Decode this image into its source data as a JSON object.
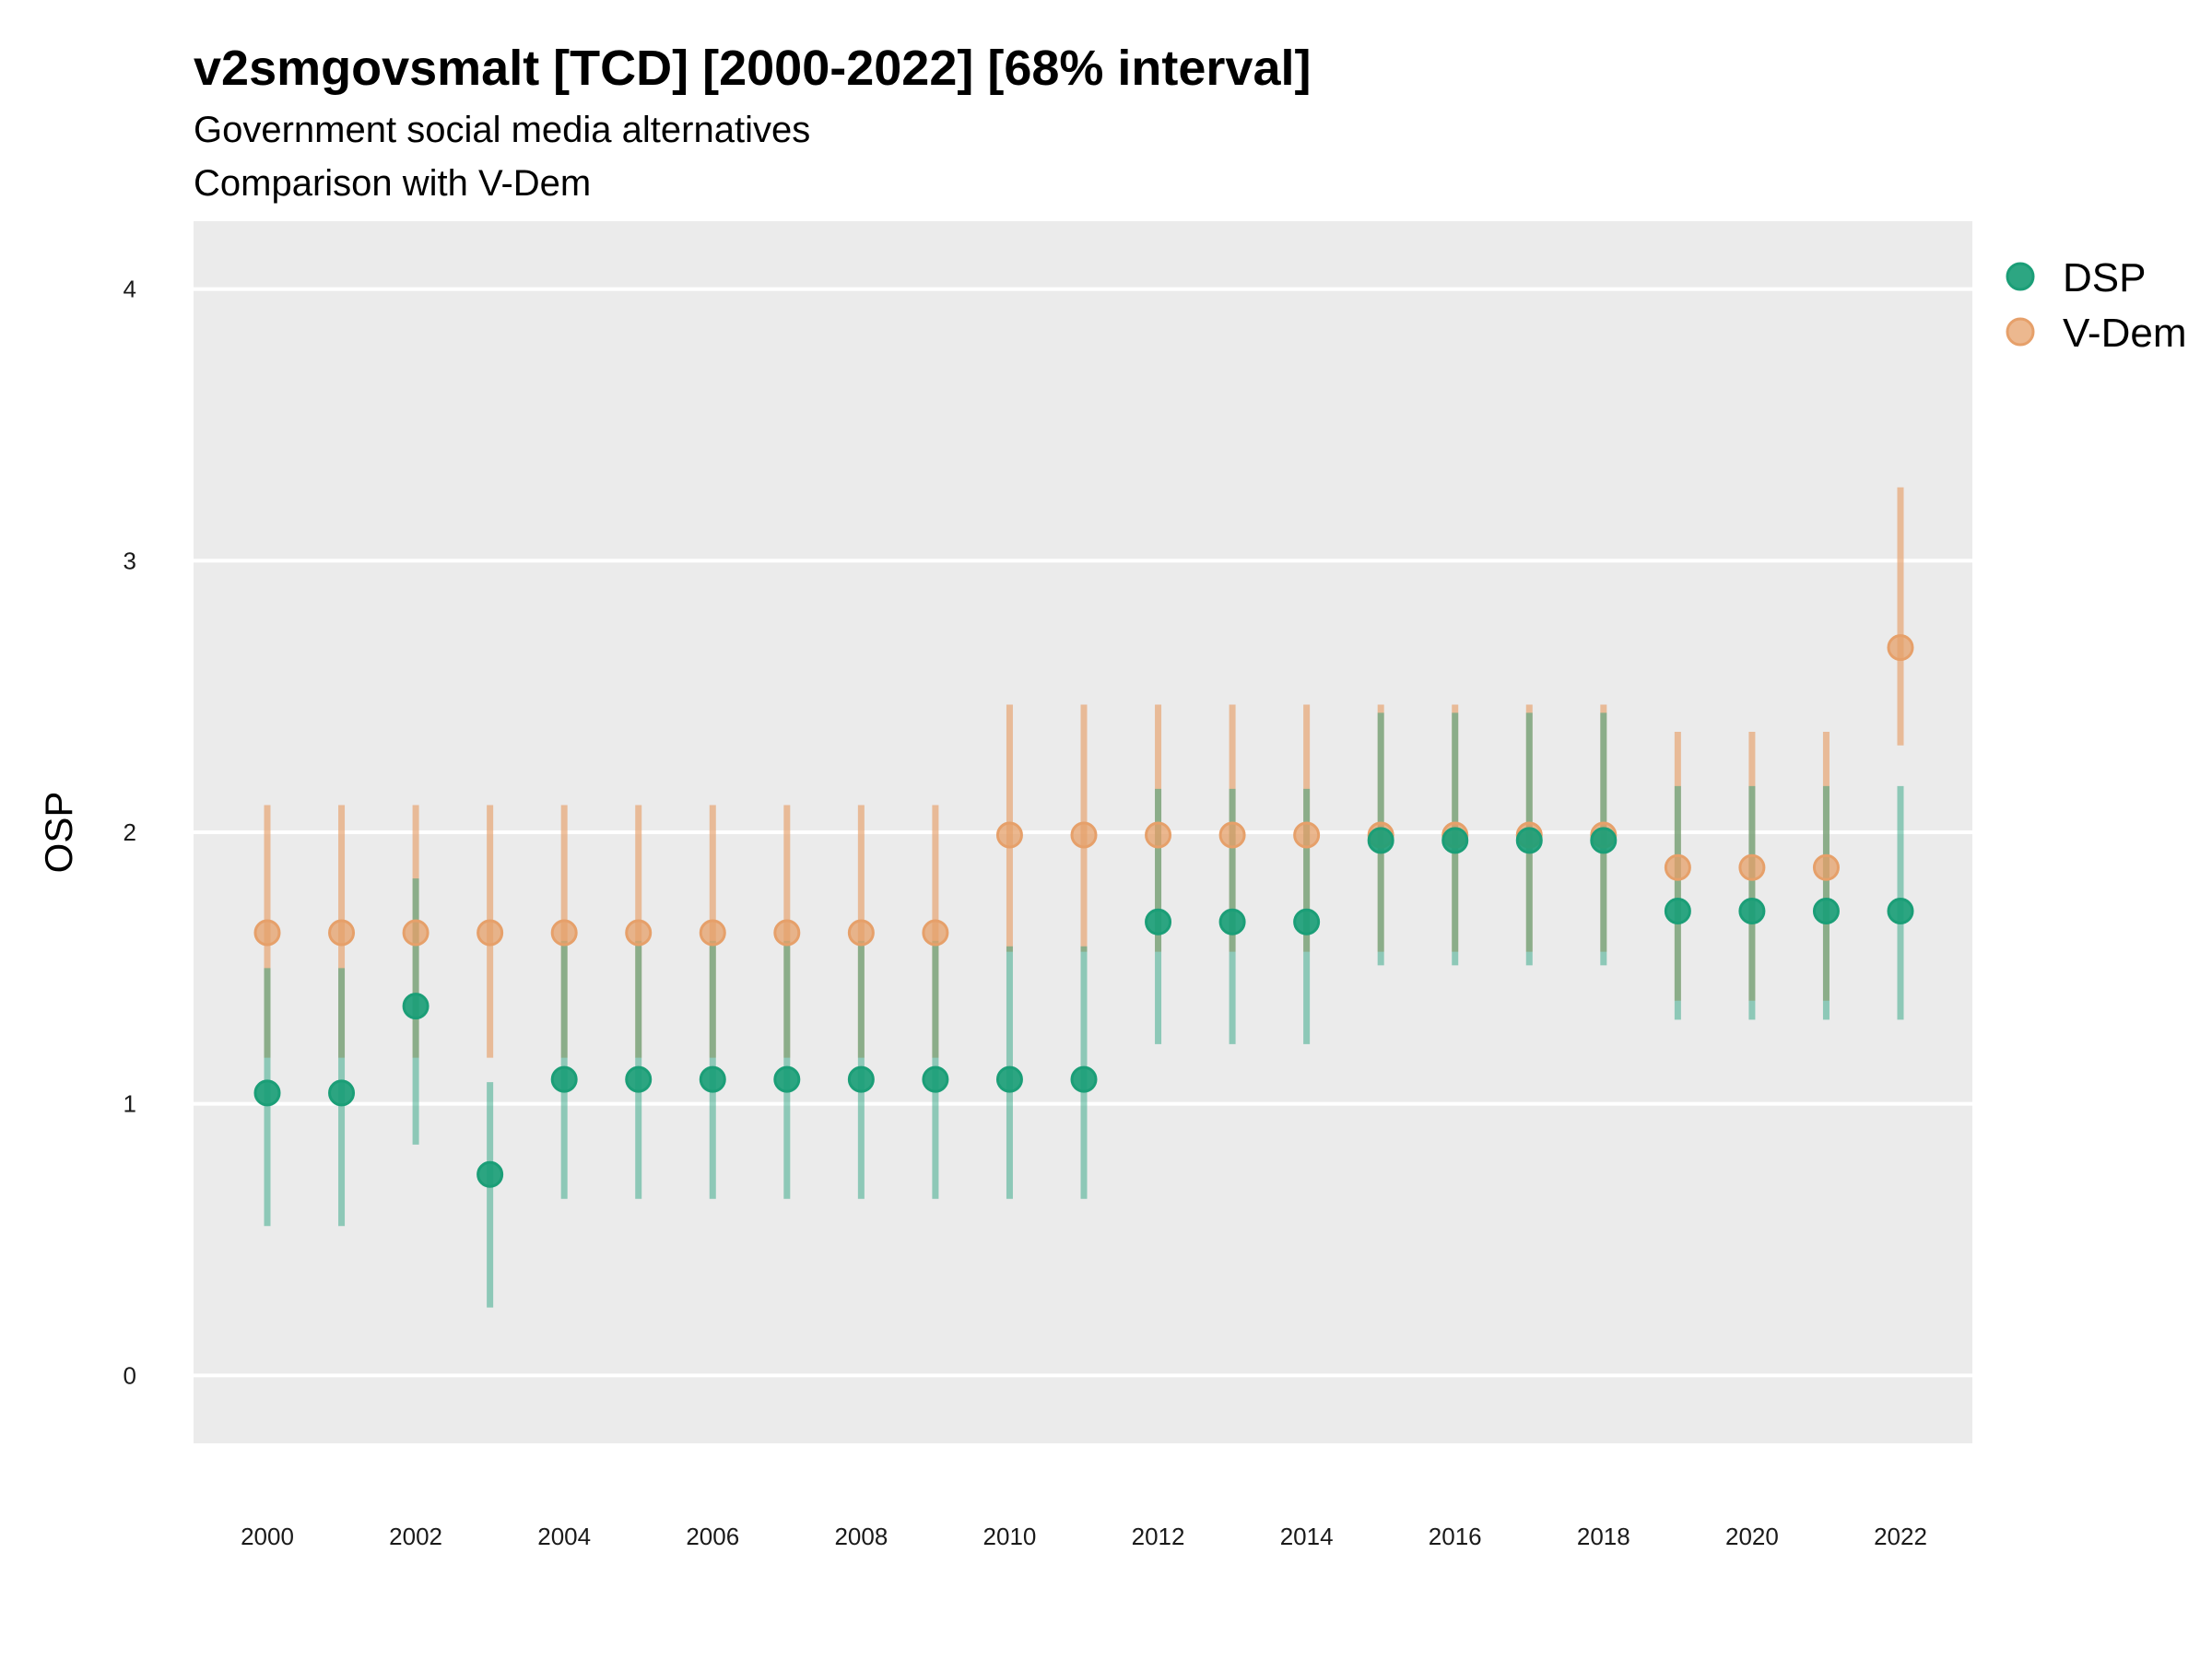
{
  "chart_data": {
    "type": "scatter",
    "title": "v2smgovsmalt [TCD] [2000-2022] [68% interval]",
    "subtitle": "Government social media alternatives",
    "caption": "Comparison with V-Dem",
    "xlabel": "",
    "ylabel": "OSP",
    "ylim": [
      -0.25,
      4.25
    ],
    "y_ticks": [
      "0",
      "1",
      "2",
      "3",
      "4"
    ],
    "x_ticks": [
      "2000",
      "2002",
      "2004",
      "2006",
      "2008",
      "2010",
      "2012",
      "2014",
      "2016",
      "2018",
      "2020",
      "2022"
    ],
    "x": [
      2000,
      2001,
      2002,
      2003,
      2004,
      2005,
      2006,
      2007,
      2008,
      2009,
      2010,
      2011,
      2012,
      2013,
      2014,
      2015,
      2016,
      2017,
      2018,
      2019,
      2020,
      2021,
      2022
    ],
    "grid": true,
    "legend_position": "right",
    "series": [
      {
        "name": "DSP",
        "color": "#1b9e77",
        "values": [
          1.04,
          1.04,
          1.36,
          0.74,
          1.09,
          1.09,
          1.09,
          1.09,
          1.09,
          1.09,
          1.09,
          1.09,
          1.67,
          1.67,
          1.67,
          1.97,
          1.97,
          1.97,
          1.97,
          1.71,
          1.71,
          1.71,
          1.71
        ],
        "lower": [
          0.55,
          0.55,
          0.85,
          0.25,
          0.65,
          0.65,
          0.65,
          0.65,
          0.65,
          0.65,
          0.65,
          0.65,
          1.22,
          1.22,
          1.22,
          1.51,
          1.51,
          1.51,
          1.51,
          1.31,
          1.31,
          1.31,
          1.31
        ],
        "upper": [
          1.5,
          1.5,
          1.83,
          1.08,
          1.6,
          1.6,
          1.6,
          1.6,
          1.6,
          1.6,
          1.58,
          1.58,
          2.16,
          2.16,
          2.16,
          2.44,
          2.44,
          2.44,
          2.44,
          2.17,
          2.17,
          2.17,
          2.17
        ]
      },
      {
        "name": "V-Dem",
        "color": "#e6a06a",
        "values": [
          1.63,
          1.63,
          1.63,
          1.63,
          1.63,
          1.63,
          1.63,
          1.63,
          1.63,
          1.63,
          1.99,
          1.99,
          1.99,
          1.99,
          1.99,
          1.99,
          1.99,
          1.99,
          1.99,
          1.87,
          1.87,
          1.87,
          2.68
        ],
        "lower": [
          1.17,
          1.17,
          1.17,
          1.17,
          1.17,
          1.17,
          1.17,
          1.17,
          1.17,
          1.17,
          1.56,
          1.56,
          1.56,
          1.56,
          1.56,
          1.56,
          1.56,
          1.56,
          1.56,
          1.38,
          1.38,
          1.38,
          2.32
        ],
        "upper": [
          2.1,
          2.1,
          2.1,
          2.1,
          2.1,
          2.1,
          2.1,
          2.1,
          2.1,
          2.1,
          2.47,
          2.47,
          2.47,
          2.47,
          2.47,
          2.47,
          2.47,
          2.47,
          2.47,
          2.37,
          2.37,
          2.37,
          3.27
        ]
      }
    ]
  },
  "colors": {
    "panel": "#ebebeb",
    "grid": "#ffffff",
    "dsp": "#1b9e77",
    "vdem": "#e6a06a"
  }
}
